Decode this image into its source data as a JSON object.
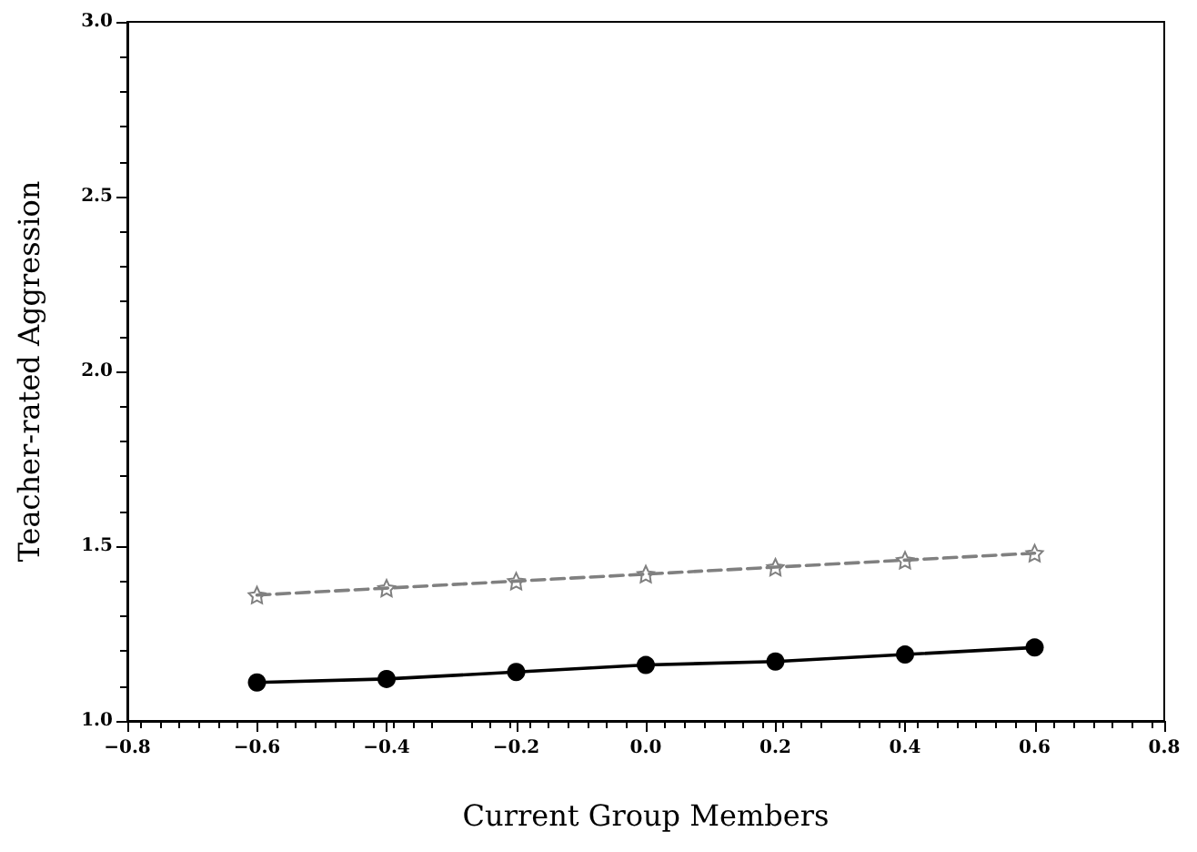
{
  "chart_data": {
    "type": "line",
    "xlabel": "Current Group Members",
    "ylabel": "Teacher-rated Aggression",
    "x": [
      -0.6,
      -0.4,
      -0.2,
      0.0,
      0.2,
      0.4,
      0.6
    ],
    "series": [
      {
        "color": "#808080",
        "marker": "star",
        "line_style": "dashed",
        "values": [
          1.36,
          1.38,
          1.4,
          1.42,
          1.44,
          1.46,
          1.48
        ]
      },
      {
        "color": "#000000",
        "marker": "circle",
        "line_style": "solid",
        "values": [
          1.11,
          1.12,
          1.14,
          1.16,
          1.17,
          1.19,
          1.21
        ]
      }
    ],
    "xlim": [
      -0.8,
      0.8
    ],
    "xticks": [
      -0.8,
      -0.6,
      -0.4,
      -0.2,
      {
        "value": 0,
        "label": "0.0"
      },
      0.2,
      0.4,
      0.6,
      0.8
    ],
    "ylim": [
      1.0,
      3.0
    ],
    "yticks": [
      {
        "value": 1,
        "label": "1.0"
      },
      1.5,
      {
        "value": 2,
        "label": "2.0"
      },
      2.5,
      {
        "value": 3,
        "label": "3.0"
      }
    ],
    "grid": false
  }
}
